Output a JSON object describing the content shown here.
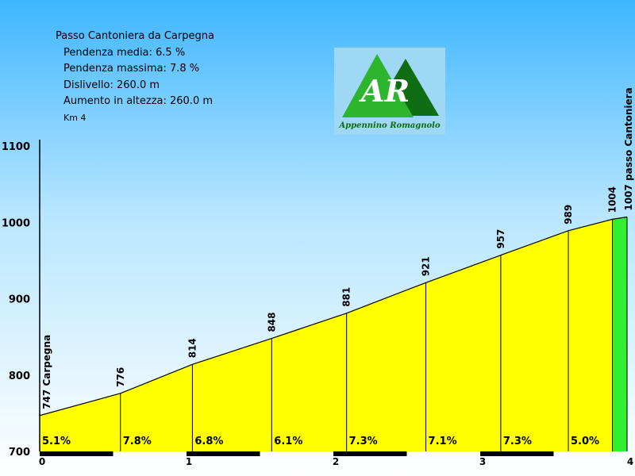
{
  "info": {
    "title": "Passo Cantoniera da Carpegna",
    "avg_grade": "Pendenza media: 6.5 %",
    "max_grade": "Pendenza massima: 7.8 %",
    "elevation_gain": "Dislivello: 260.0 m",
    "height_increase": "Aumento in altezza: 260.0 m",
    "distance": "Km 4"
  },
  "logo": {
    "letters": "AR",
    "caption": "Appennino Romagnolo",
    "colors": [
      "#2db52d",
      "#0f6e14"
    ]
  },
  "colors": {
    "fill": "#ffff00",
    "last_segment": "#33ee33",
    "outline": "#000000"
  },
  "chart_data": {
    "type": "area",
    "x_unit": "km",
    "xlim": [
      0,
      4
    ],
    "ylim": [
      700,
      1100
    ],
    "x_ticks": [
      0,
      1,
      2,
      3,
      4
    ],
    "y_ticks": [
      700,
      800,
      900,
      1000,
      1100
    ],
    "points": [
      {
        "x": 0.0,
        "y": 747,
        "label": "747 Carpegna"
      },
      {
        "x": 0.55,
        "y": 776,
        "label": "776"
      },
      {
        "x": 1.04,
        "y": 814,
        "label": "814"
      },
      {
        "x": 1.58,
        "y": 848,
        "label": "848"
      },
      {
        "x": 2.09,
        "y": 881,
        "label": "881"
      },
      {
        "x": 2.63,
        "y": 921,
        "label": "921"
      },
      {
        "x": 3.14,
        "y": 957,
        "label": "957"
      },
      {
        "x": 3.6,
        "y": 989,
        "label": "989"
      },
      {
        "x": 3.9,
        "y": 1004,
        "label": "1004"
      },
      {
        "x": 4.0,
        "y": 1007,
        "label": "1007 passo Cantoniera"
      }
    ],
    "segment_grades": [
      "5.1%",
      "7.8%",
      "6.8%",
      "6.1%",
      "7.3%",
      "7.1%",
      "7.3%",
      "5.0%",
      ""
    ]
  }
}
